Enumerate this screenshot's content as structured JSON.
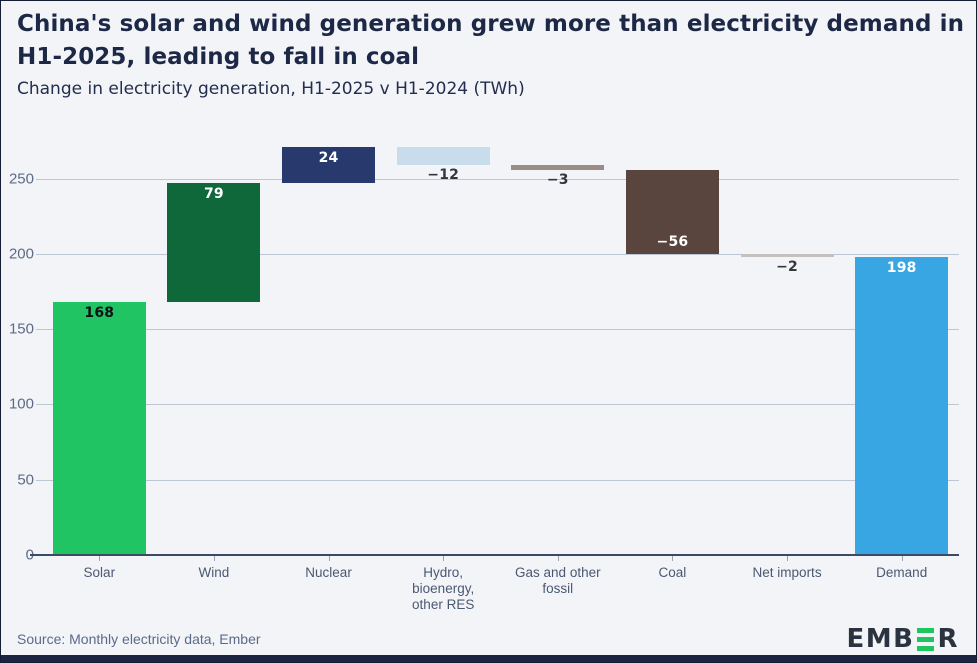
{
  "header": {
    "title": "China's solar and wind generation grew more than electricity demand in H1-2025, leading to fall in coal",
    "subtitle": "Change in electricity generation, H1-2025 v H1-2024 (TWh)"
  },
  "footer": {
    "source": "Source: Monthly electricity data, Ember",
    "logo": {
      "text_before": "EMB",
      "text_after": "R",
      "middle_icon": "ember-green-bars-e-icon",
      "brand_green": "#1fc55e",
      "brand_dark": "#2b3340"
    }
  },
  "colors": {
    "background": "#f2f4f8",
    "gridline": "#bdc6d3",
    "zero_axis": "#3d4a66",
    "title_text": "#1d2846",
    "axis_text": "#4b5872"
  },
  "chart_data": {
    "type": "bar",
    "subtype": "waterfall",
    "title": "China's solar and wind generation grew more than electricity demand in H1-2025, leading to fall in coal",
    "subtitle": "Change in electricity generation, H1-2025 v H1-2024 (TWh)",
    "unit": "TWh",
    "grid": true,
    "legend": "none",
    "ylim": [
      0,
      275
    ],
    "y_ticks": [
      0,
      50,
      100,
      150,
      200,
      250
    ],
    "categories": [
      "Solar",
      "Wind",
      "Nuclear",
      "Hydro,\nbioenergy,\nother RES",
      "Gas and other\nfossil",
      "Coal",
      "Net imports",
      "Demand"
    ],
    "series": [
      {
        "name": "Solar",
        "value": 168,
        "kind": "delta",
        "start": 0,
        "end": 168,
        "label": "168",
        "color": "#21c463",
        "label_color": "#0d1016",
        "label_position": "inside-top"
      },
      {
        "name": "Wind",
        "value": 79,
        "kind": "delta",
        "start": 168,
        "end": 247,
        "label": "79",
        "color": "#0f683a",
        "label_color": "#ffffff",
        "label_position": "inside-top"
      },
      {
        "name": "Nuclear",
        "value": 24,
        "kind": "delta",
        "start": 247,
        "end": 271,
        "label": "24",
        "color": "#27396d",
        "label_color": "#ffffff",
        "label_position": "inside-top"
      },
      {
        "name": "Hydro, bioenergy, other RES",
        "value": -12,
        "kind": "delta",
        "start": 271,
        "end": 259,
        "label": "−12",
        "color": "#c9dcec",
        "label_color": "#32373f",
        "label_position": "below"
      },
      {
        "name": "Gas and other fossil",
        "value": -3,
        "kind": "delta",
        "start": 259,
        "end": 256,
        "label": "−3",
        "color": "#9c8c86",
        "label_color": "#32373f",
        "label_position": "below"
      },
      {
        "name": "Coal",
        "value": -56,
        "kind": "delta",
        "start": 256,
        "end": 200,
        "label": "−56",
        "color": "#5a443e",
        "label_color": "#ffffff",
        "label_position": "inside-bottom"
      },
      {
        "name": "Net imports",
        "value": -2,
        "kind": "delta",
        "start": 200,
        "end": 198,
        "label": "−2",
        "color": "#c5c1bf",
        "label_color": "#32373f",
        "label_position": "below"
      },
      {
        "name": "Demand",
        "value": 198,
        "kind": "total",
        "start": 0,
        "end": 198,
        "label": "198",
        "color": "#38a6e2",
        "label_color": "#ffffff",
        "label_position": "inside-top"
      }
    ]
  }
}
